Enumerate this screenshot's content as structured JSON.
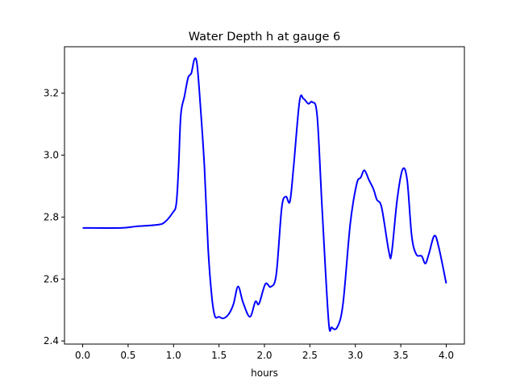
{
  "chart_data": {
    "type": "line",
    "title": "Water Depth h at gauge 6",
    "xlabel": "hours",
    "ylabel": "",
    "xlim": [
      -0.2,
      4.2
    ],
    "ylim": [
      2.39,
      3.35
    ],
    "xticks": [
      0.0,
      0.5,
      1.0,
      1.5,
      2.0,
      2.5,
      3.0,
      3.5,
      4.0
    ],
    "xtick_labels": [
      "0.0",
      "0.5",
      "1.0",
      "1.5",
      "2.0",
      "2.5",
      "3.0",
      "3.5",
      "4.0"
    ],
    "yticks": [
      2.4,
      2.6,
      2.8,
      3.0,
      3.2
    ],
    "ytick_labels": [
      "2.4",
      "2.6",
      "2.8",
      "3.0",
      "3.2"
    ],
    "grid": false,
    "series": [
      {
        "name": "h",
        "color": "#0000ff",
        "x": [
          0,
          0.42,
          0.59,
          0.82,
          0.9,
          0.99,
          1.03,
          1.055,
          1.08,
          1.12,
          1.16,
          1.196,
          1.23,
          1.26,
          1.3,
          1.34,
          1.38,
          1.42,
          1.455,
          1.5,
          1.55,
          1.61,
          1.66,
          1.71,
          1.765,
          1.84,
          1.9,
          1.94,
          2.01,
          2.07,
          2.13,
          2.19,
          2.236,
          2.28,
          2.32,
          2.386,
          2.43,
          2.483,
          2.527,
          2.58,
          2.634,
          2.705,
          2.74,
          2.8,
          2.864,
          2.944,
          3.015,
          3.06,
          3.1,
          3.15,
          3.2,
          3.237,
          3.29,
          3.37,
          3.4,
          3.46,
          3.52,
          3.57,
          3.62,
          3.67,
          3.73,
          3.77,
          3.81,
          3.87,
          3.92,
          4.0
        ],
        "y": [
          2.765,
          2.765,
          2.77,
          2.775,
          2.783,
          2.814,
          2.843,
          2.96,
          3.13,
          3.19,
          3.25,
          3.265,
          3.31,
          3.29,
          3.14,
          2.96,
          2.7,
          2.545,
          2.48,
          2.478,
          2.473,
          2.488,
          2.52,
          2.576,
          2.524,
          2.478,
          2.527,
          2.52,
          2.584,
          2.575,
          2.615,
          2.83,
          2.866,
          2.85,
          2.96,
          3.174,
          3.182,
          3.166,
          3.171,
          3.127,
          2.83,
          2.467,
          2.444,
          2.444,
          2.519,
          2.778,
          2.907,
          2.928,
          2.951,
          2.92,
          2.89,
          2.856,
          2.83,
          2.687,
          2.685,
          2.856,
          2.954,
          2.92,
          2.74,
          2.68,
          2.674,
          2.65,
          2.682,
          2.74,
          2.7,
          2.586
        ]
      }
    ]
  }
}
